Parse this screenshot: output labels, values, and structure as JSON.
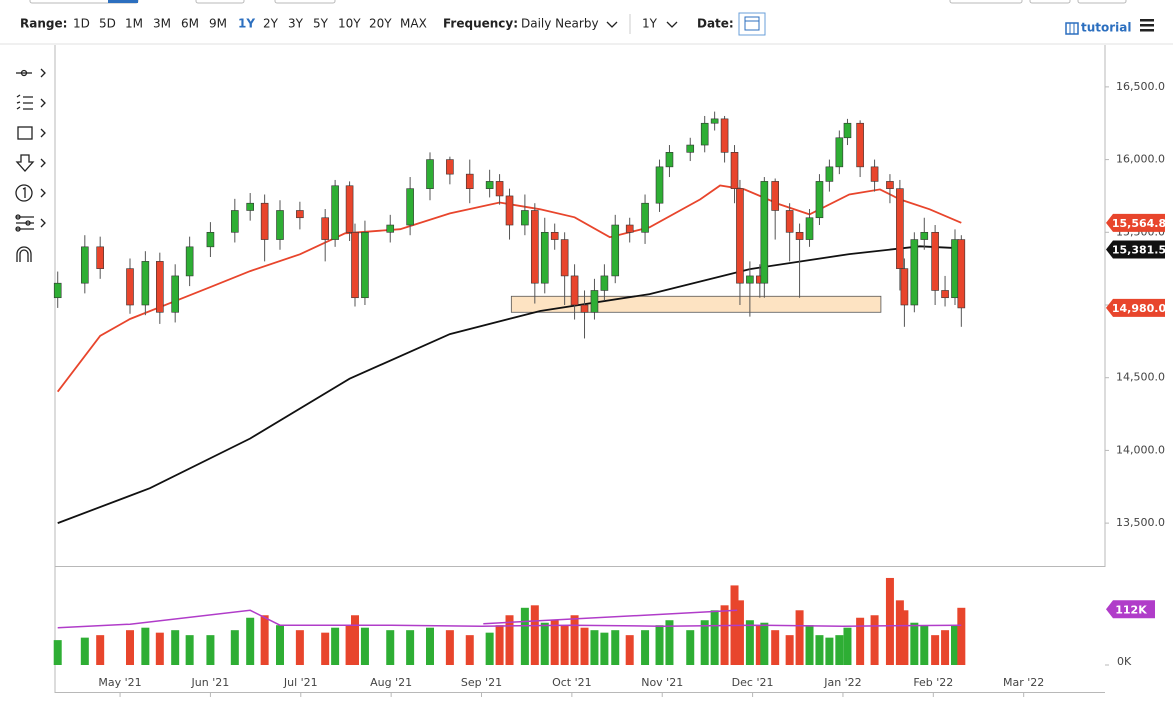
{
  "toolbar": {
    "range_label": "Range:",
    "ranges": [
      "1D",
      "5D",
      "1M",
      "3M",
      "6M",
      "9M",
      "1Y",
      "2Y",
      "3Y",
      "5Y",
      "10Y",
      "20Y",
      "MAX"
    ],
    "active_range": 6,
    "frequency_label": "Frequency:",
    "frequency": "Daily Nearby",
    "period": "1Y",
    "date_label": "Date:",
    "tutorial": "tutorial"
  },
  "chart_data": [
    {
      "type": "candlestick",
      "up_color": "#2eae34",
      "down_color": "#e8452c",
      "x": [
        4.31,
        4.61,
        4.78,
        5.11,
        5.28,
        5.44,
        5.61,
        5.77,
        6.0,
        6.27,
        6.44,
        6.6,
        6.77,
        6.99,
        7.27,
        7.38,
        7.54,
        7.6,
        7.71,
        7.99,
        8.21,
        8.43,
        8.65,
        8.87,
        9.09,
        9.2,
        9.31,
        9.48,
        9.59,
        9.7,
        9.81,
        9.92,
        10.03,
        10.14,
        10.25,
        10.36,
        10.48,
        10.64,
        10.81,
        10.97,
        11.08,
        11.31,
        11.47,
        11.58,
        11.69,
        11.8,
        11.86,
        11.97,
        12.08,
        12.13,
        12.25,
        12.41,
        12.52,
        12.63,
        12.74,
        12.85,
        12.96,
        13.05,
        13.19,
        13.35,
        13.52,
        13.63,
        13.68,
        13.79,
        13.9,
        14.02,
        14.13,
        14.24,
        14.31
      ],
      "open": [
        15050,
        15150,
        15400,
        15250,
        15000,
        15300,
        14950,
        15200,
        15400,
        15500,
        15650,
        15700,
        15450,
        15650,
        15600,
        15450,
        15820,
        15500,
        15050,
        15500,
        15550,
        15800,
        16000,
        15900,
        15800,
        15850,
        15750,
        15550,
        15650,
        15150,
        15500,
        15450,
        15200,
        15000,
        14950,
        15100,
        15200,
        15550,
        15500,
        15700,
        15950,
        16050,
        16100,
        16250,
        16280,
        16050,
        15800,
        15150,
        15200,
        15150,
        15850,
        15650,
        15500,
        15450,
        15600,
        15850,
        15950,
        16150,
        16250,
        15950,
        15850,
        15800,
        15250,
        15000,
        15450,
        15500,
        15100,
        15050,
        15450
      ],
      "high": [
        15230,
        15480,
        15470,
        15320,
        15370,
        15360,
        15280,
        15470,
        15570,
        15730,
        15770,
        15760,
        15720,
        15710,
        15660,
        15860,
        15850,
        15560,
        15580,
        15620,
        15880,
        16050,
        16020,
        16000,
        15930,
        15900,
        15800,
        15760,
        15700,
        15600,
        15560,
        15500,
        15280,
        15100,
        15180,
        15280,
        15620,
        15600,
        15760,
        16000,
        16100,
        16150,
        16300,
        16330,
        16300,
        16100,
        15860,
        15300,
        15280,
        15880,
        15870,
        15700,
        15560,
        15660,
        15900,
        16000,
        16200,
        16280,
        16270,
        16000,
        15900,
        15860,
        15320,
        15500,
        15600,
        15550,
        15200,
        15520,
        15480
      ],
      "low": [
        14980,
        15080,
        15180,
        14940,
        14930,
        14870,
        14880,
        15130,
        15330,
        15430,
        15580,
        15300,
        15380,
        15520,
        15300,
        15400,
        15440,
        14990,
        15000,
        15430,
        15480,
        15720,
        15830,
        15700,
        15740,
        15690,
        15450,
        15480,
        15010,
        15080,
        15380,
        15000,
        14900,
        14770,
        14900,
        15030,
        15150,
        15430,
        15420,
        15640,
        15880,
        15990,
        16050,
        16200,
        15980,
        15700,
        15000,
        14920,
        15050,
        15050,
        15450,
        15300,
        15050,
        15400,
        15550,
        15780,
        15900,
        16100,
        15880,
        15780,
        15700,
        15100,
        14850,
        14950,
        15380,
        15000,
        14990,
        15000,
        14850
      ],
      "close": [
        15150,
        15400,
        15250,
        15000,
        15300,
        14950,
        15200,
        15400,
        15500,
        15650,
        15700,
        15450,
        15650,
        15600,
        15450,
        15820,
        15500,
        15050,
        15500,
        15550,
        15800,
        16000,
        15900,
        15800,
        15850,
        15750,
        15550,
        15650,
        15150,
        15500,
        15450,
        15200,
        15000,
        14950,
        15100,
        15200,
        15550,
        15500,
        15700,
        15950,
        16050,
        16100,
        16250,
        16280,
        16050,
        15800,
        15150,
        15200,
        15150,
        15850,
        15650,
        15500,
        15450,
        15600,
        15850,
        15950,
        16150,
        16250,
        15950,
        15850,
        15800,
        15250,
        15000,
        15450,
        15500,
        15100,
        15050,
        15450,
        14980
      ],
      "last_close": {
        "value": 14980,
        "label": "14,980.0"
      },
      "lines": [
        {
          "color": "#e8452c",
          "x": [
            4.31,
            4.78,
            5.11,
            5.61,
            6.0,
            6.44,
            6.99,
            7.49,
            8.1,
            8.65,
            9.2,
            9.65,
            10.03,
            10.42,
            10.86,
            11.42,
            11.64,
            11.91,
            12.3,
            12.63,
            13.07,
            13.41,
            13.63,
            13.96,
            14.31
          ],
          "values": [
            14404,
            14788,
            14904,
            15027,
            15123,
            15233,
            15349,
            15493,
            15521,
            15630,
            15705,
            15658,
            15603,
            15466,
            15534,
            15726,
            15822,
            15795,
            15692,
            15623,
            15760,
            15795,
            15726,
            15658,
            15565
          ],
          "last_value": {
            "value": 15564.8,
            "label": "15,564.8"
          }
        },
        {
          "color": "#111111",
          "x": [
            4.31,
            5.33,
            6.44,
            7.54,
            8.65,
            9.65,
            10.86,
            11.97,
            13.07,
            13.85,
            14.31
          ],
          "values": [
            13500,
            13740,
            14082,
            14493,
            14800,
            14959,
            15075,
            15247,
            15350,
            15404,
            15390
          ],
          "last_value": {
            "value": 15381.5,
            "label": "15,381.5"
          }
        }
      ],
      "zone": {
        "x": [
          9.33,
          13.42
        ],
        "y": [
          14950,
          15060
        ]
      },
      "xlim": [
        4.28,
        15.9
      ],
      "ylim": [
        13212,
        16788
      ],
      "yticks": [
        {
          "value": 13500,
          "label": "13,500.0"
        },
        {
          "value": 14000,
          "label": "14,000.0"
        },
        {
          "value": 14500,
          "label": "14,500.0"
        },
        {
          "value": 15000,
          "label": "15,000.0"
        },
        {
          "value": 15500,
          "label": "15,500.0"
        },
        {
          "value": 16000,
          "label": "16,000.0"
        },
        {
          "value": 16500,
          "label": "16,500.0"
        }
      ]
    },
    {
      "type": "bar",
      "x": [
        4.31,
        4.61,
        4.78,
        5.11,
        5.28,
        5.44,
        5.61,
        5.77,
        6.0,
        6.27,
        6.44,
        6.6,
        6.77,
        6.99,
        7.27,
        7.38,
        7.54,
        7.6,
        7.71,
        7.99,
        8.21,
        8.43,
        8.65,
        8.87,
        9.09,
        9.2,
        9.31,
        9.48,
        9.59,
        9.7,
        9.81,
        9.92,
        10.03,
        10.14,
        10.25,
        10.36,
        10.48,
        10.64,
        10.81,
        10.97,
        11.08,
        11.31,
        11.47,
        11.58,
        11.69,
        11.8,
        11.86,
        11.97,
        12.08,
        12.13,
        12.25,
        12.41,
        12.52,
        12.63,
        12.74,
        12.85,
        12.96,
        13.05,
        13.19,
        13.35,
        13.52,
        13.63,
        13.68,
        13.79,
        13.9,
        14.02,
        14.13,
        14.24,
        14.31
      ],
      "values": [
        50,
        55,
        60,
        70,
        75,
        65,
        70,
        60,
        60,
        70,
        95,
        100,
        80,
        70,
        65,
        75,
        80,
        100,
        75,
        70,
        70,
        75,
        70,
        60,
        65,
        80,
        100,
        115,
        120,
        85,
        90,
        80,
        100,
        75,
        70,
        65,
        70,
        60,
        70,
        80,
        90,
        70,
        90,
        110,
        120,
        160,
        130,
        90,
        80,
        85,
        70,
        60,
        110,
        80,
        60,
        55,
        60,
        75,
        95,
        100,
        175,
        130,
        110,
        85,
        80,
        60,
        70,
        80,
        115
      ],
      "average": {
        "color": "#b03cc9",
        "x": [
          4.31,
          5.11,
          6.44,
          6.77,
          8.0,
          9.0,
          10.0,
          11.0,
          12.0,
          13.0,
          14.31
        ],
        "values": [
          75,
          82,
          110,
          80,
          80,
          78,
          80,
          78,
          80,
          78,
          80
        ]
      },
      "trendline": {
        "color": "#b03cc9",
        "x": [
          9.02,
          11.83
        ],
        "values": [
          83,
          110
        ]
      },
      "badge": {
        "value": 112,
        "label": "112K",
        "color": "#b03cc9"
      },
      "xlim": [
        4.28,
        15.9
      ],
      "ylim": [
        0,
        195
      ],
      "yticks": [
        {
          "value": 0,
          "label": "0K"
        }
      ],
      "xticks": [
        {
          "value": 5,
          "label": "May '21"
        },
        {
          "value": 6,
          "label": "Jun '21"
        },
        {
          "value": 7,
          "label": "Jul '21"
        },
        {
          "value": 8,
          "label": "Aug '21"
        },
        {
          "value": 9,
          "label": "Sep '21"
        },
        {
          "value": 10,
          "label": "Oct '21"
        },
        {
          "value": 11,
          "label": "Nov '21"
        },
        {
          "value": 12,
          "label": "Dec '21"
        },
        {
          "value": 13,
          "label": "Jan '22"
        },
        {
          "value": 14,
          "label": "Feb '22"
        },
        {
          "value": 15,
          "label": "Mar '22"
        }
      ]
    }
  ]
}
